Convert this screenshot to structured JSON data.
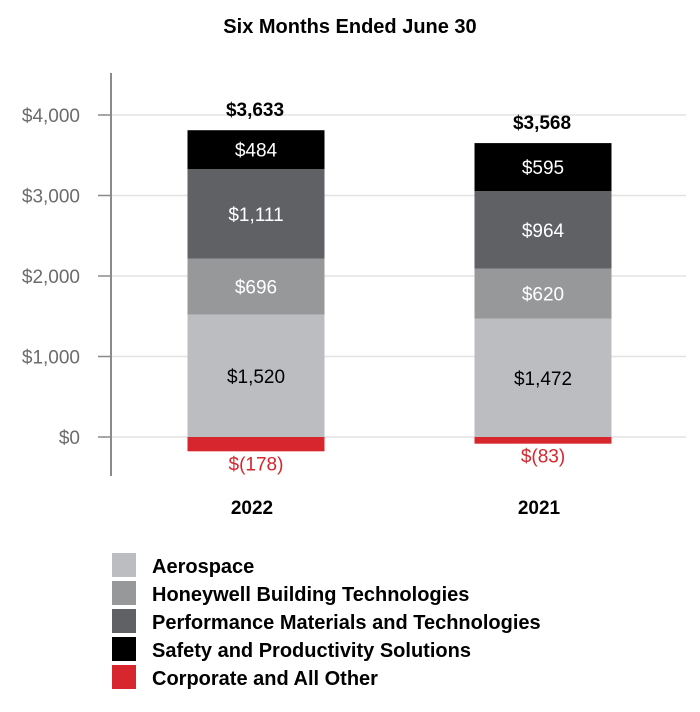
{
  "chart_data": {
    "type": "bar",
    "stacked": true,
    "title": "Six Months Ended June 30",
    "categories": [
      "2022",
      "2021"
    ],
    "series": [
      {
        "name": "Aerospace",
        "color": "#bcbdc0",
        "label_color": "#000000",
        "values": [
          1520,
          1472
        ],
        "labels": [
          "$1,520",
          "$1,472"
        ]
      },
      {
        "name": "Honeywell Building Technologies",
        "color": "#97989a",
        "label_color": "#ffffff",
        "values": [
          696,
          620
        ],
        "labels": [
          "$696",
          "$620"
        ]
      },
      {
        "name": "Performance Materials and Technologies",
        "color": "#5f6165",
        "label_color": "#ffffff",
        "values": [
          1111,
          964
        ],
        "labels": [
          "$1,111",
          "$964"
        ]
      },
      {
        "name": "Safety and Productivity Solutions",
        "color": "#000000",
        "label_color": "#ffffff",
        "values": [
          484,
          595
        ],
        "labels": [
          "$484",
          "$595"
        ]
      },
      {
        "name": "Corporate and All Other",
        "color": "#d7262e",
        "label_color": "#d7262e",
        "values": [
          -178,
          -83
        ],
        "labels": [
          "$(178)",
          "$(83)"
        ]
      }
    ],
    "totals": [
      "$3,633",
      "$3,568"
    ],
    "yticks": [
      0,
      1000,
      2000,
      3000,
      4000
    ],
    "ytick_labels": [
      "$0",
      "$1,000",
      "$2,000",
      "$3,000",
      "$4,000"
    ],
    "ylim": [
      -500,
      4500
    ],
    "grid": true,
    "legend_position": "bottom"
  }
}
